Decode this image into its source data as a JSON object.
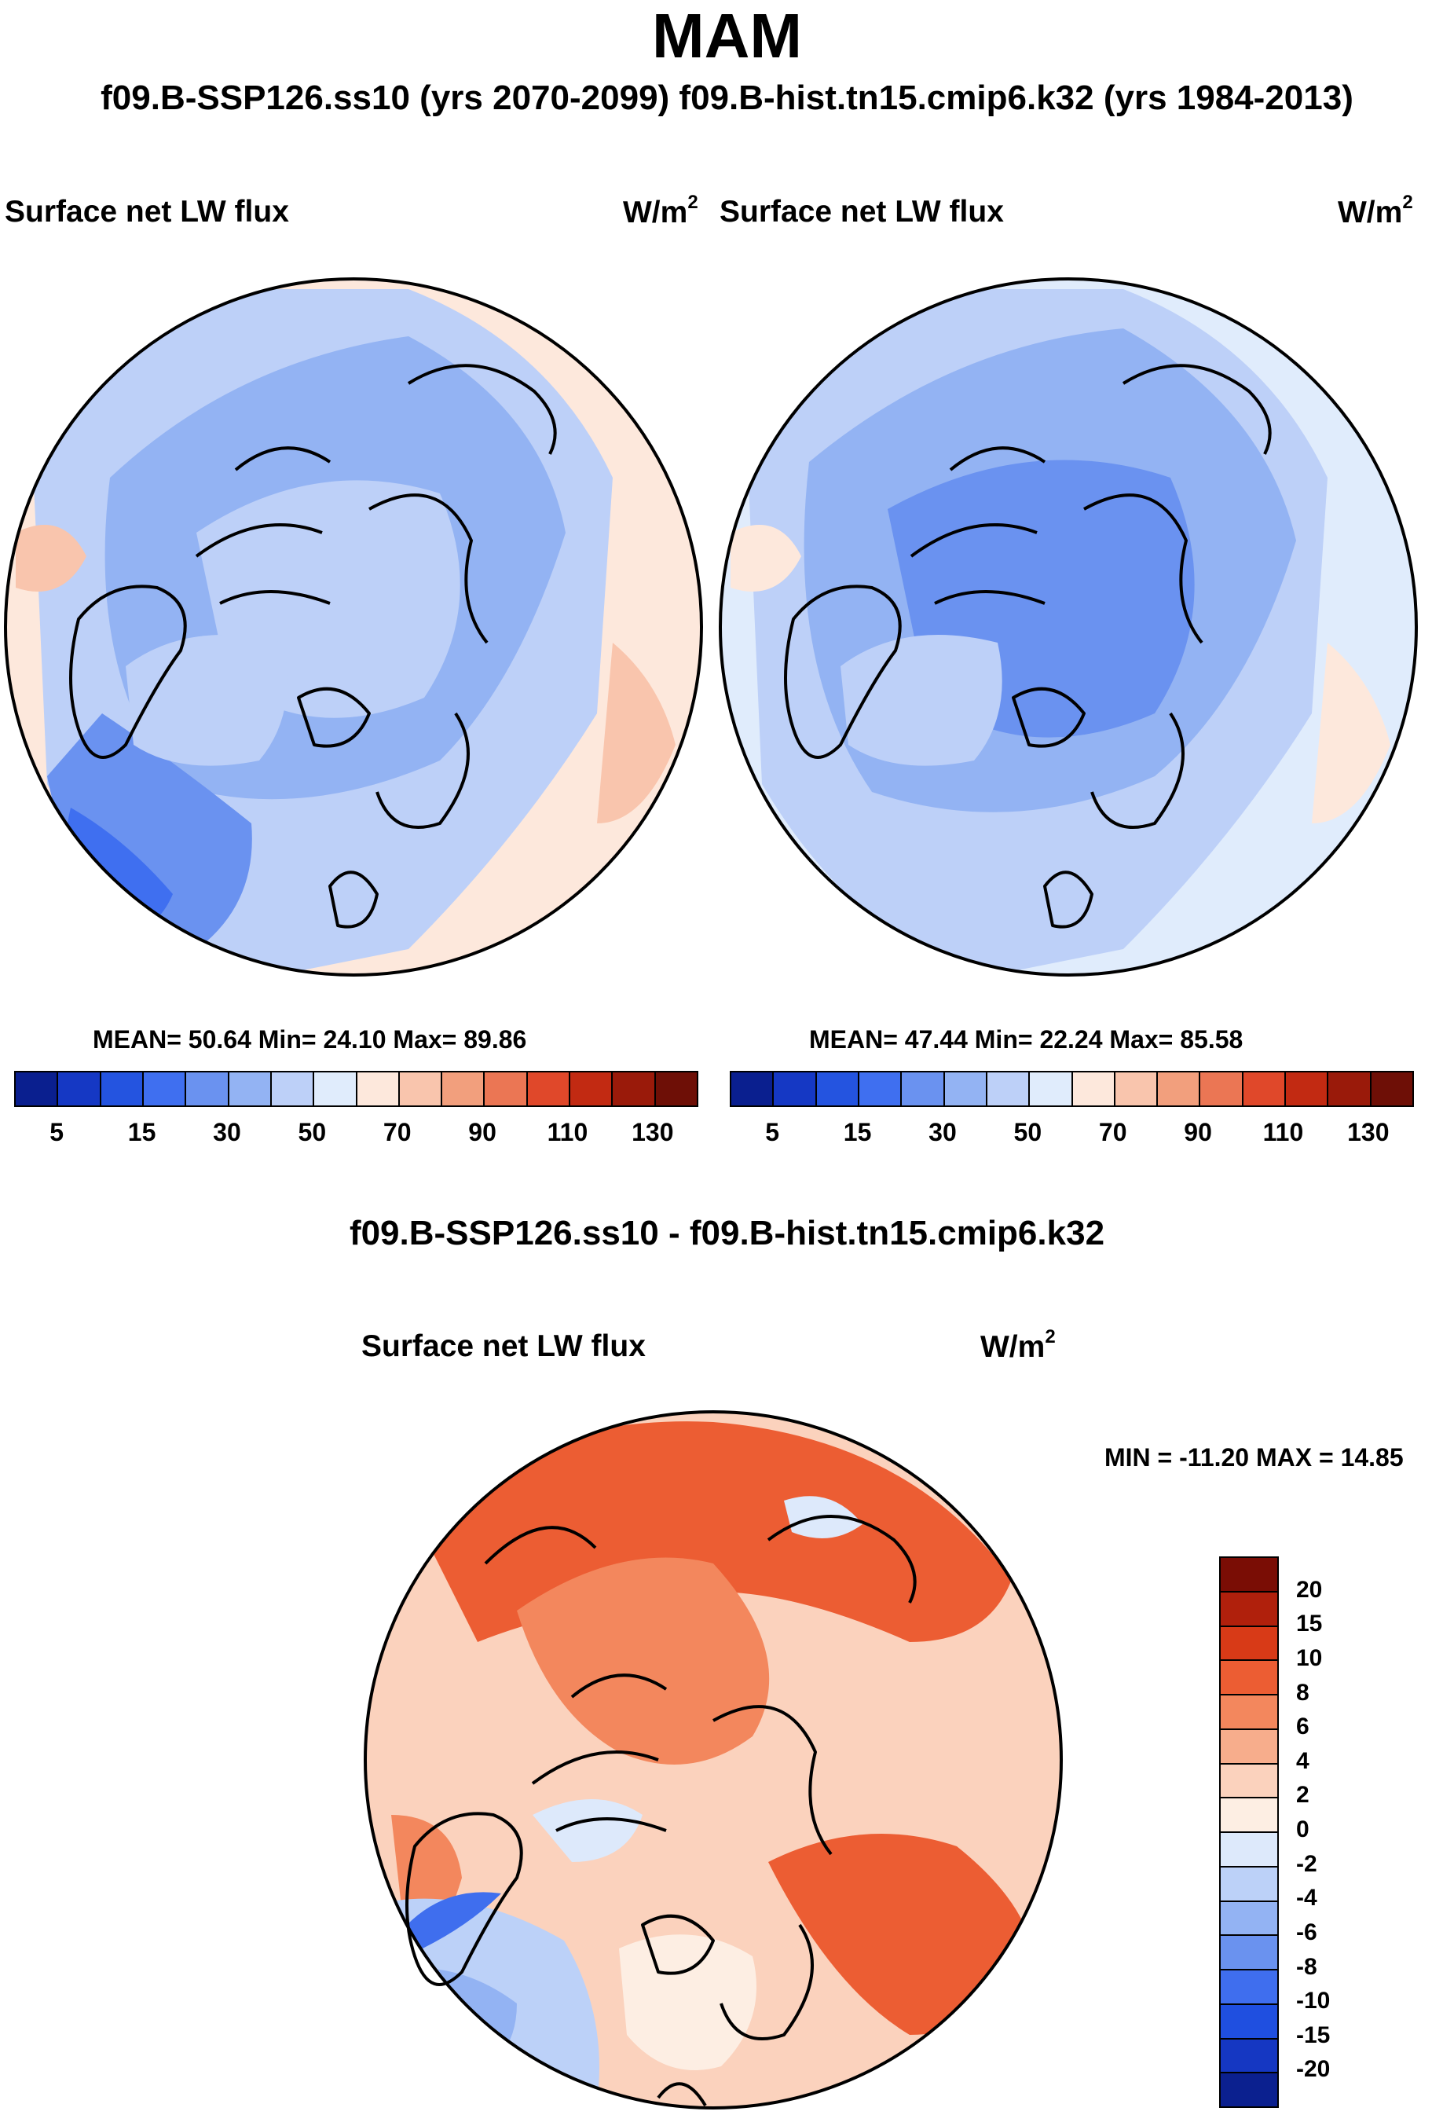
{
  "figure": {
    "season": "MAM",
    "run_header": "f09.B-SSP126.ss10 (yrs 2070-2099)  f09.B-hist.tn15.cmip6.k32 (yrs 1984-2013)",
    "diff_title": "f09.B-SSP126.ss10 - f09.B-hist.tn15.cmip6.k32"
  },
  "panels": {
    "left": {
      "variable": "Surface net LW flux",
      "unit": "W/m",
      "unit_sup": "2",
      "stats": "MEAN=  50.64  Min=  24.10  Max=  89.86"
    },
    "right": {
      "variable": "Surface net LW flux",
      "unit": "W/m",
      "unit_sup": "2",
      "stats": "MEAN=  47.44  Min=  22.24  Max=  85.58"
    },
    "diff": {
      "variable": "Surface net LW flux",
      "unit": "W/m",
      "unit_sup": "2",
      "stats": "MIN = -11.20 MAX =  14.85"
    }
  },
  "colorbars": {
    "main": {
      "colors": [
        "#0a1f8f",
        "#1538c4",
        "#2454e0",
        "#3f6ff0",
        "#6a92f0",
        "#93b3f3",
        "#bdd0f8",
        "#e0ecfc",
        "#fde8dc",
        "#f9c5ad",
        "#f29f7d",
        "#eb7654",
        "#e0482a",
        "#c22a12",
        "#9a1a0a",
        "#6e0f06"
      ],
      "tick_labels": [
        "5",
        "15",
        "30",
        "50",
        "70",
        "90",
        "110",
        "130"
      ]
    },
    "diff": {
      "colors": [
        "#7a0d05",
        "#b0200c",
        "#d83a17",
        "#ec5d33",
        "#f3875d",
        "#f7ad8c",
        "#fbd2bd",
        "#fdeee3",
        "#dde9fb",
        "#bcd1f8",
        "#93b3f3",
        "#6a92ef",
        "#3f6eee",
        "#1f4fe0",
        "#1537c2",
        "#0b208f"
      ],
      "tick_labels": [
        "20",
        "15",
        "10",
        "8",
        "6",
        "4",
        "2",
        "0",
        "-2",
        "-4",
        "-6",
        "-8",
        "-10",
        "-15",
        "-20"
      ]
    }
  }
}
